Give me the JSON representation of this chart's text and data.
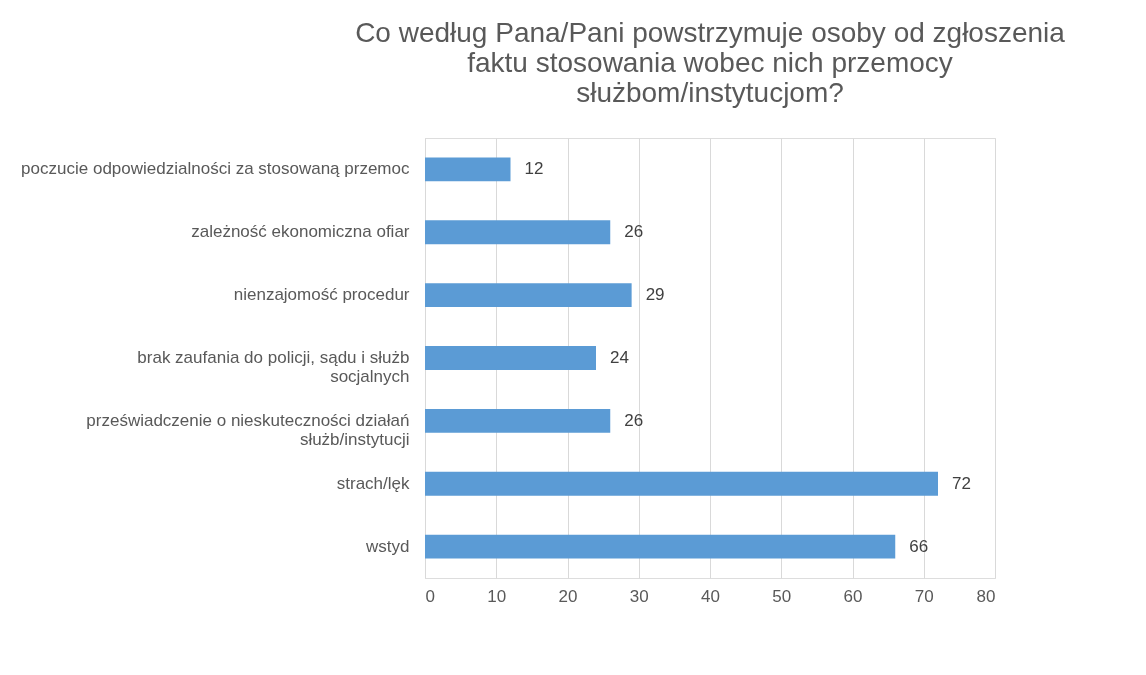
{
  "chart_data": {
    "type": "bar",
    "orientation": "horizontal",
    "title": "Co według Pana/Pani powstrzymuje osoby od zgłoszenia faktu stosowania wobec nich przemocy służbom/instytucjom?",
    "categories": [
      "poczucie odpowiedzialności za stosowaną przemoc",
      "zależność ekonomiczna ofiar",
      "nienzajomość procedur",
      "brak zaufania do policji, sądu i służb socjalnych",
      "przeświadczenie o nieskuteczności działań służb/instytucji",
      "strach/lęk",
      "wstyd"
    ],
    "values": [
      12,
      26,
      29,
      24,
      26,
      72,
      66
    ],
    "color": "#5b9bd5",
    "xlim": [
      0,
      80
    ],
    "xticks": [
      0,
      10,
      20,
      30,
      40,
      50,
      60,
      70,
      80
    ],
    "grid": "x",
    "data_labels": true
  }
}
